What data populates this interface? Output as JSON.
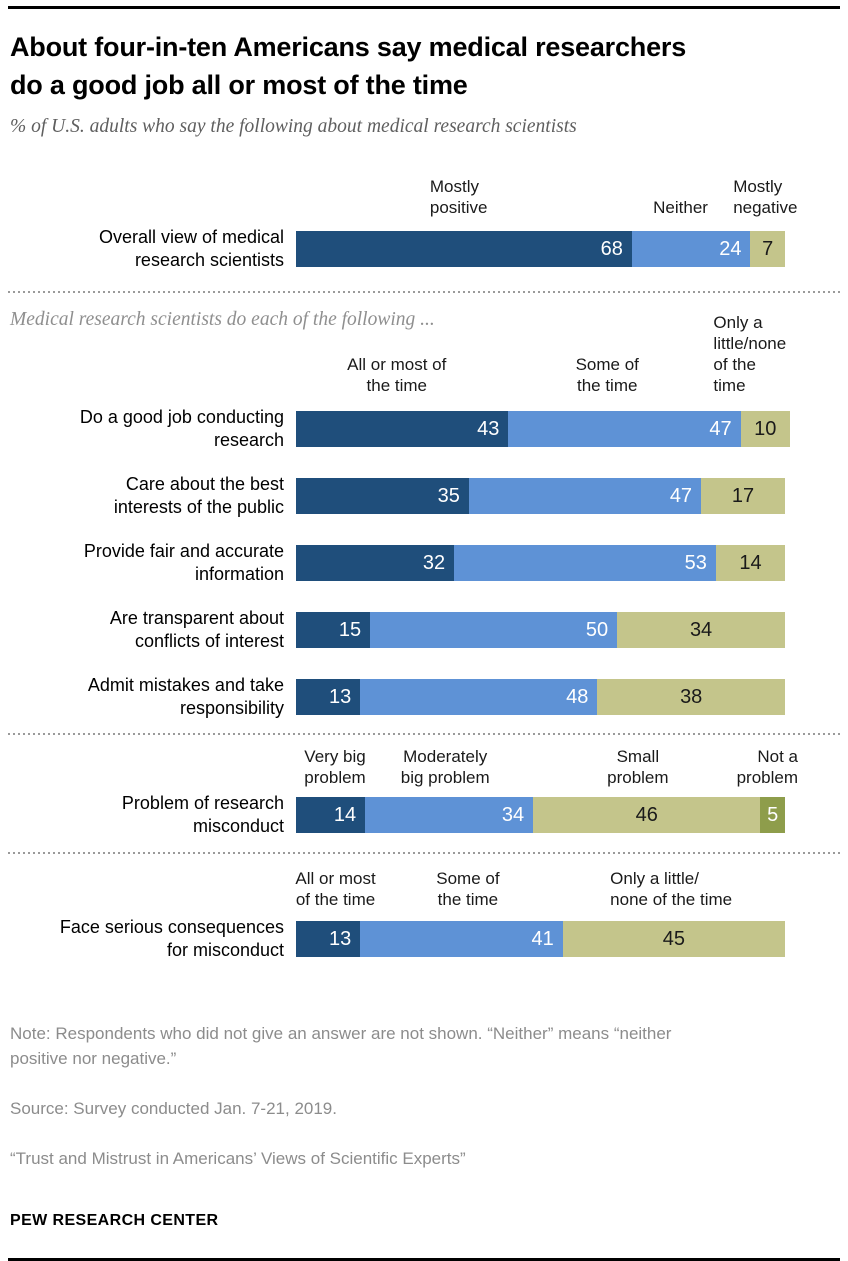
{
  "header": {
    "title": "About four-in-ten Americans say medical researchers\ndo a good job all or most of the time",
    "subtitle": "% of U.S. adults who say the following about medical research scientists"
  },
  "colors": {
    "dark_blue": "#1F4E7B",
    "light_blue": "#5E92D6",
    "olive": "#C4C58B",
    "dark_olive": "#8E9D4B"
  },
  "sections": [
    {
      "id": "overall",
      "headers": [
        {
          "text": "Mostly\npositive",
          "anchor": "left",
          "x": 27.1
        },
        {
          "text": "Neither",
          "anchor": "left",
          "x": 72.3
        },
        {
          "text": "Mostly\nnegative",
          "anchor": "left",
          "x": 88.5
        }
      ],
      "rows": [
        {
          "label": "Overall view of medical\nresearch scientists",
          "segments": [
            {
              "value": 68,
              "color": "dark_blue",
              "style": "wr"
            },
            {
              "value": 24,
              "color": "light_blue",
              "style": "wr"
            },
            {
              "value": 7,
              "color": "olive",
              "style": "dc"
            }
          ]
        }
      ]
    },
    {
      "id": "following",
      "divider_before": true,
      "intro": "Medical research scientists do each of the following ...",
      "headers": [
        {
          "text": "All or most of\nthe time",
          "anchor": "center",
          "x": 20.4
        },
        {
          "text": "Some of\nthe time",
          "anchor": "center",
          "x": 63
        },
        {
          "text": "Only a\nlittle/none\nof the time",
          "anchor": "left",
          "x": 84.5
        }
      ],
      "rows": [
        {
          "label": "Do a good job conducting\nresearch",
          "segments": [
            {
              "value": 43,
              "color": "dark_blue",
              "style": "wr"
            },
            {
              "value": 47,
              "color": "light_blue",
              "style": "wr"
            },
            {
              "value": 10,
              "color": "olive",
              "style": "dc"
            }
          ]
        },
        {
          "label": "Care about the best\ninterests of the public",
          "segments": [
            {
              "value": 35,
              "color": "dark_blue",
              "style": "wr"
            },
            {
              "value": 47,
              "color": "light_blue",
              "style": "wr"
            },
            {
              "value": 17,
              "color": "olive",
              "style": "dc"
            }
          ]
        },
        {
          "label": "Provide fair and accurate\ninformation",
          "segments": [
            {
              "value": 32,
              "color": "dark_blue",
              "style": "wr"
            },
            {
              "value": 53,
              "color": "light_blue",
              "style": "wr"
            },
            {
              "value": 14,
              "color": "olive",
              "style": "dc"
            }
          ]
        },
        {
          "label": "Are transparent about\nconflicts of interest",
          "segments": [
            {
              "value": 15,
              "color": "dark_blue",
              "style": "wr"
            },
            {
              "value": 50,
              "color": "light_blue",
              "style": "wr"
            },
            {
              "value": 34,
              "color": "olive",
              "style": "dc"
            }
          ]
        },
        {
          "label": "Admit mistakes and take\nresponsibility",
          "segments": [
            {
              "value": 13,
              "color": "dark_blue",
              "style": "wr"
            },
            {
              "value": 48,
              "color": "light_blue",
              "style": "wr"
            },
            {
              "value": 38,
              "color": "olive",
              "style": "dc"
            }
          ]
        }
      ]
    },
    {
      "id": "misconduct",
      "divider_before": true,
      "headers": [
        {
          "text": "Very big\nproblem",
          "anchor": "center",
          "x": 7.9
        },
        {
          "text": "Moderately\nbig problem",
          "anchor": "center",
          "x": 30.2
        },
        {
          "text": "Small\nproblem",
          "anchor": "center",
          "x": 69.2
        },
        {
          "text": "Not a\nproblem",
          "anchor": "right",
          "x": -8
        }
      ],
      "rows": [
        {
          "label": "Problem of research\nmisconduct",
          "segments": [
            {
              "value": 14,
              "color": "dark_blue",
              "style": "wr"
            },
            {
              "value": 34,
              "color": "light_blue",
              "style": "wr"
            },
            {
              "value": 46,
              "color": "olive",
              "style": "dc"
            },
            {
              "value": 5,
              "color": "dark_olive",
              "style": "wc"
            }
          ]
        }
      ]
    },
    {
      "id": "consequences",
      "divider_before": true,
      "headers": [
        {
          "text": "All or most\nof the time",
          "anchor": "center",
          "x": 8
        },
        {
          "text": "Some of\nthe time",
          "anchor": "center",
          "x": 34.8
        },
        {
          "text": "Only a little/\nnone of the time",
          "anchor": "left",
          "x": 63.6
        }
      ],
      "rows": [
        {
          "label": "Face serious consequences\nfor misconduct",
          "segments": [
            {
              "value": 13,
              "color": "dark_blue",
              "style": "wr"
            },
            {
              "value": 41,
              "color": "light_blue",
              "style": "wr"
            },
            {
              "value": 45,
              "color": "olive",
              "style": "dc"
            }
          ]
        }
      ]
    }
  ],
  "footer": {
    "notes": [
      "Note: Respondents who did not give an answer are not shown. “Neither” means “neither\npositive nor negative.”",
      "Source: Survey conducted Jan. 7-21, 2019.",
      "“Trust and Mistrust in Americans’ Views of Scientific Experts”"
    ],
    "brand": "PEW RESEARCH CENTER"
  },
  "chart_data": [
    {
      "type": "bar",
      "orientation": "horizontal",
      "stacked": true,
      "title": "About four-in-ten Americans say medical researchers do a good job all or most of the time",
      "subtitle": "% of U.S. adults who say the following about medical research scientists",
      "categories": [
        "Overall view of medical research scientists"
      ],
      "series": [
        {
          "name": "Mostly positive",
          "values": [
            68
          ]
        },
        {
          "name": "Neither",
          "values": [
            24
          ]
        },
        {
          "name": "Mostly negative",
          "values": [
            7
          ]
        }
      ],
      "xlim": [
        0,
        100
      ],
      "legend_position": "above-bars",
      "grid": false
    },
    {
      "type": "bar",
      "orientation": "horizontal",
      "stacked": true,
      "title": "Medical research scientists do each of the following ...",
      "categories": [
        "Do a good job conducting research",
        "Care about the best interests of the public",
        "Provide fair and accurate information",
        "Are transparent about conflicts of interest",
        "Admit mistakes and take responsibility"
      ],
      "series": [
        {
          "name": "All or most of the time",
          "values": [
            43,
            35,
            32,
            15,
            13
          ]
        },
        {
          "name": "Some of the time",
          "values": [
            47,
            47,
            53,
            50,
            48
          ]
        },
        {
          "name": "Only a little/none of the time",
          "values": [
            10,
            17,
            14,
            34,
            38
          ]
        }
      ],
      "xlim": [
        0,
        100
      ],
      "legend_position": "above-bars",
      "grid": false
    },
    {
      "type": "bar",
      "orientation": "horizontal",
      "stacked": true,
      "categories": [
        "Problem of research misconduct"
      ],
      "series": [
        {
          "name": "Very big problem",
          "values": [
            14
          ]
        },
        {
          "name": "Moderately big problem",
          "values": [
            34
          ]
        },
        {
          "name": "Small problem",
          "values": [
            46
          ]
        },
        {
          "name": "Not a problem",
          "values": [
            5
          ]
        }
      ],
      "xlim": [
        0,
        100
      ],
      "legend_position": "above-bars",
      "grid": false
    },
    {
      "type": "bar",
      "orientation": "horizontal",
      "stacked": true,
      "categories": [
        "Face serious consequences for misconduct"
      ],
      "series": [
        {
          "name": "All or most of the time",
          "values": [
            13
          ]
        },
        {
          "name": "Some of the time",
          "values": [
            41
          ]
        },
        {
          "name": "Only a little/none of the time",
          "values": [
            45
          ]
        }
      ],
      "xlim": [
        0,
        100
      ],
      "legend_position": "above-bars",
      "grid": false
    }
  ]
}
